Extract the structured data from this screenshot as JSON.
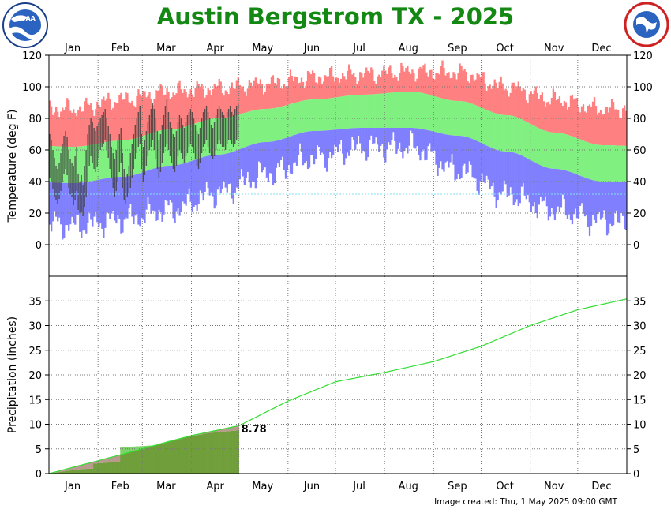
{
  "title": "Austin Bergstrom TX - 2025",
  "credit": "Image created: Thu, 1 May 2025 09:00 GMT",
  "logos": {
    "left": "NOAA",
    "right": "NATIONAL WEATHER SERVICE"
  },
  "colors": {
    "title": "#138813",
    "normal_high_band": "#ff8080",
    "normal_range_band": "#80f080",
    "normal_low_band": "#8080ff",
    "observed_bar": "#3a3a3a",
    "precip_normal_line": "#33dd33",
    "precip_observed": "#6f9e3a",
    "precip_normal_fill": "#b89b8c",
    "freezing_line": "#80e0f0"
  },
  "chart_data": [
    {
      "type": "bar",
      "name": "temperature",
      "ylabel": "Temperature (deg F)",
      "ylim": [
        -20,
        120
      ],
      "yticks": [
        0,
        20,
        40,
        60,
        80,
        100,
        120
      ],
      "months": [
        "Jan",
        "Feb",
        "Mar",
        "Apr",
        "May",
        "Jun",
        "Jul",
        "Aug",
        "Sep",
        "Oct",
        "Nov",
        "Dec"
      ],
      "grid": true,
      "freezing_line": 32,
      "normal_high_monthly": [
        62,
        66,
        73,
        80,
        86,
        92,
        95,
        97,
        91,
        82,
        71,
        63
      ],
      "normal_low_monthly": [
        39,
        43,
        50,
        57,
        65,
        72,
        74,
        74,
        69,
        59,
        48,
        40
      ],
      "record_high_monthly": [
        86,
        92,
        97,
        99,
        102,
        106,
        108,
        110,
        109,
        100,
        92,
        86
      ],
      "record_low_monthly": [
        12,
        16,
        22,
        33,
        45,
        55,
        62,
        62,
        47,
        32,
        22,
        15
      ],
      "observed_daily": [
        [
          70,
          42
        ],
        [
          66,
          40
        ],
        [
          60,
          35
        ],
        [
          55,
          30
        ],
        [
          50,
          28
        ],
        [
          48,
          26
        ],
        [
          52,
          29
        ],
        [
          58,
          34
        ],
        [
          64,
          40
        ],
        [
          69,
          45
        ],
        [
          72,
          48
        ],
        [
          68,
          44
        ],
        [
          60,
          36
        ],
        [
          54,
          32
        ],
        [
          52,
          30
        ],
        [
          50,
          25
        ],
        [
          56,
          28
        ],
        [
          62,
          34
        ],
        [
          45,
          22
        ],
        [
          40,
          20
        ],
        [
          44,
          21
        ],
        [
          38,
          18
        ],
        [
          50,
          24
        ],
        [
          60,
          30
        ],
        [
          70,
          40
        ],
        [
          76,
          50
        ],
        [
          80,
          56
        ],
        [
          78,
          52
        ],
        [
          74,
          48
        ],
        [
          72,
          46
        ],
        [
          75,
          49
        ],
        [
          78,
          55
        ],
        [
          80,
          60
        ],
        [
          82,
          62
        ],
        [
          84,
          64
        ],
        [
          86,
          66
        ],
        [
          80,
          60
        ],
        [
          75,
          55
        ],
        [
          70,
          48
        ],
        [
          62,
          42
        ],
        [
          58,
          36
        ],
        [
          54,
          30
        ],
        [
          60,
          34
        ],
        [
          66,
          40
        ],
        [
          70,
          46
        ],
        [
          74,
          52
        ],
        [
          58,
          36
        ],
        [
          48,
          28
        ],
        [
          42,
          26
        ],
        [
          45,
          30
        ],
        [
          50,
          32
        ],
        [
          58,
          36
        ],
        [
          64,
          42
        ],
        [
          70,
          48
        ],
        [
          76,
          54
        ],
        [
          80,
          58
        ],
        [
          84,
          62
        ],
        [
          88,
          64
        ],
        [
          70,
          48
        ],
        [
          62,
          40
        ],
        [
          66,
          44
        ],
        [
          72,
          50
        ],
        [
          78,
          56
        ],
        [
          82,
          60
        ],
        [
          86,
          62
        ],
        [
          90,
          66
        ],
        [
          86,
          60
        ],
        [
          80,
          54
        ],
        [
          72,
          48
        ],
        [
          66,
          42
        ],
        [
          70,
          46
        ],
        [
          76,
          52
        ],
        [
          82,
          58
        ],
        [
          88,
          62
        ],
        [
          92,
          64
        ],
        [
          84,
          60
        ],
        [
          78,
          56
        ],
        [
          74,
          52
        ],
        [
          70,
          48
        ],
        [
          68,
          46
        ],
        [
          72,
          50
        ],
        [
          78,
          56
        ],
        [
          82,
          60
        ],
        [
          80,
          58
        ],
        [
          76,
          54
        ],
        [
          74,
          52
        ],
        [
          78,
          56
        ],
        [
          82,
          58
        ],
        [
          84,
          62
        ],
        [
          86,
          64
        ],
        [
          84,
          62
        ],
        [
          80,
          58
        ],
        [
          76,
          54
        ],
        [
          72,
          50
        ],
        [
          70,
          48
        ],
        [
          74,
          52
        ],
        [
          80,
          58
        ],
        [
          84,
          62
        ],
        [
          86,
          64
        ],
        [
          88,
          66
        ],
        [
          84,
          62
        ],
        [
          80,
          58
        ],
        [
          76,
          56
        ],
        [
          74,
          54
        ],
        [
          78,
          56
        ],
        [
          82,
          60
        ],
        [
          86,
          64
        ],
        [
          88,
          66
        ],
        [
          86,
          64
        ],
        [
          84,
          62
        ],
        [
          82,
          62
        ],
        [
          80,
          60
        ],
        [
          84,
          64
        ],
        [
          86,
          66
        ],
        [
          88,
          66
        ],
        [
          84,
          64
        ],
        [
          82,
          62
        ],
        [
          86,
          64
        ],
        [
          88,
          66
        ],
        [
          90,
          68
        ]
      ]
    },
    {
      "type": "area",
      "name": "precipitation",
      "ylabel": "Precipitation (inches)",
      "ylim": [
        0,
        40
      ],
      "yticks": [
        0,
        5,
        10,
        15,
        20,
        25,
        30,
        35
      ],
      "months": [
        "Jan",
        "Feb",
        "Mar",
        "Apr",
        "May",
        "Jun",
        "Jul",
        "Aug",
        "Sep",
        "Oct",
        "Nov",
        "Dec"
      ],
      "grid": true,
      "normal_cumulative_monthly_end": [
        2.6,
        5.0,
        7.7,
        9.7,
        14.7,
        18.6,
        20.5,
        22.7,
        25.8,
        30.0,
        33.2,
        35.4
      ],
      "observed_cumulative_points": [
        [
          0,
          0
        ],
        [
          10,
          0.5
        ],
        [
          20,
          0.9
        ],
        [
          27,
          1.0
        ],
        [
          28,
          2.0
        ],
        [
          40,
          2.3
        ],
        [
          44,
          2.4
        ],
        [
          45,
          5.3
        ],
        [
          55,
          5.5
        ],
        [
          65,
          5.7
        ],
        [
          75,
          6.6
        ],
        [
          85,
          7.4
        ],
        [
          92,
          7.7
        ],
        [
          100,
          8.2
        ],
        [
          110,
          8.5
        ],
        [
          120,
          8.78
        ]
      ],
      "observed_label": "8.78"
    }
  ]
}
